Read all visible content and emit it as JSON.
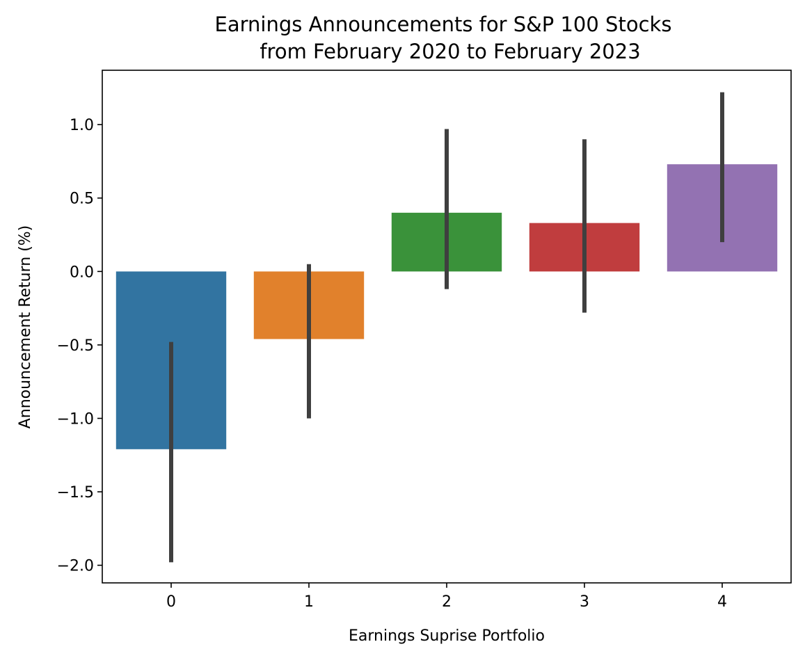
{
  "chart_data": {
    "type": "bar",
    "title": [
      "Earnings Announcements for S&P 100 Stocks",
      "from February 2020 to February 2023"
    ],
    "xlabel": "Earnings Suprise Portfolio",
    "ylabel": "Announcement Return (%)",
    "categories": [
      "0",
      "1",
      "2",
      "3",
      "4"
    ],
    "values": [
      -1.21,
      -0.46,
      0.4,
      0.33,
      0.73
    ],
    "error_low": [
      -1.98,
      -1.0,
      -0.12,
      -0.28,
      0.2
    ],
    "error_high": [
      -0.48,
      0.05,
      0.97,
      0.9,
      1.22
    ],
    "colors": [
      "#3274a1",
      "#e1812c",
      "#3a923a",
      "#c03d3e",
      "#9372b2"
    ],
    "error_color": "#3f3f3f",
    "ylim": [
      -2.12,
      1.37
    ],
    "yticks": [
      -2.0,
      -1.5,
      -1.0,
      -0.5,
      0.0,
      0.5,
      1.0
    ],
    "ytick_labels": [
      "−2.0",
      "−1.5",
      "−1.0",
      "−0.5",
      "0.0",
      "0.5",
      "1.0"
    ],
    "grid": false,
    "legend": "none"
  }
}
